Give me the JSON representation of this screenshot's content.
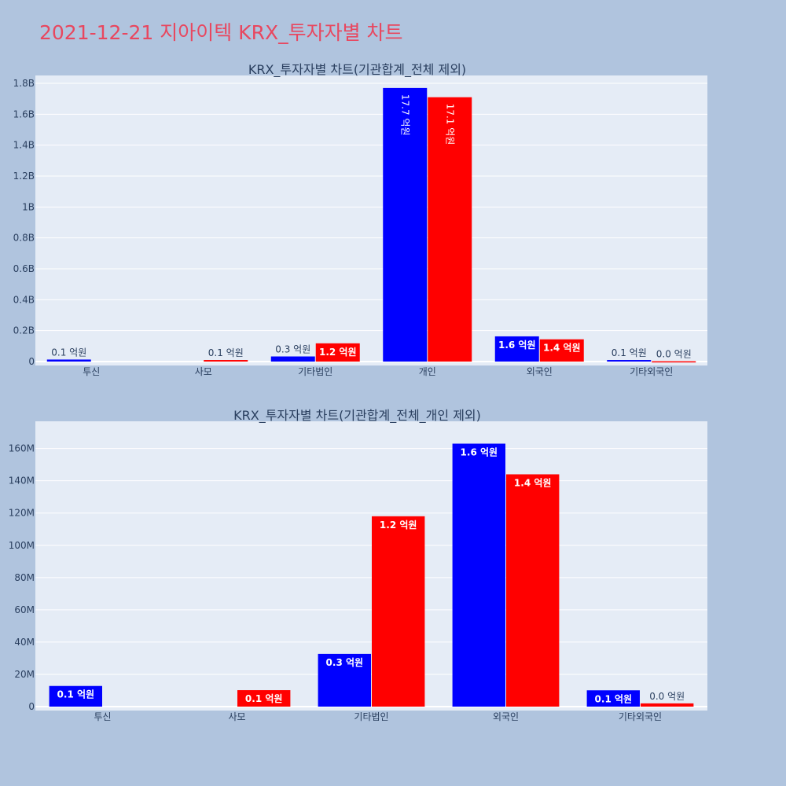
{
  "page": {
    "title": "2021-12-21 지아이텍 KRX_투자자별 차트",
    "background": "#b0c4de",
    "title_color": "#e8475f"
  },
  "chart_data": [
    {
      "type": "bar",
      "title": "KRX_투자자별 차트(기관합계_전체 제외)",
      "categories": [
        "투신",
        "사모",
        "기타법인",
        "개인",
        "외국인",
        "기타외국인"
      ],
      "yticks": [
        "0",
        "0.2B",
        "0.4B",
        "0.6B",
        "0.8B",
        "1B",
        "1.2B",
        "1.4B",
        "1.6B",
        "1.8B"
      ],
      "ylim": [
        0,
        1800000000
      ],
      "grid": true,
      "series": [
        {
          "color": "#0000ff",
          "values": [
            13000000,
            0,
            33000000,
            1770000000,
            163000000,
            10000000
          ],
          "labels": [
            "0.1 억원",
            "",
            "0.3 억원",
            "17.7 억원",
            "1.6 억원",
            "0.1 억원"
          ]
        },
        {
          "color": "#ff0000",
          "values": [
            0,
            10000000,
            118000000,
            1710000000,
            144000000,
            2000000
          ],
          "labels": [
            "",
            "0.1 억원",
            "1.2 억원",
            "17.1 억원",
            "1.4 억원",
            "0.0 억원"
          ]
        }
      ]
    },
    {
      "type": "bar",
      "title": "KRX_투자자별 차트(기관합계_전체_개인 제외)",
      "categories": [
        "투신",
        "사모",
        "기타법인",
        "외국인",
        "기타외국인"
      ],
      "yticks": [
        "0",
        "20M",
        "40M",
        "60M",
        "80M",
        "100M",
        "120M",
        "140M",
        "160M"
      ],
      "ylim": [
        0,
        172000000
      ],
      "grid": true,
      "series": [
        {
          "color": "#0000ff",
          "values": [
            12800000,
            0,
            32700000,
            163000000,
            10100000
          ],
          "labels": [
            "0.1 억원",
            "",
            "0.3 억원",
            "1.6 억원",
            "0.1 억원"
          ]
        },
        {
          "color": "#ff0000",
          "values": [
            0,
            10200000,
            118000000,
            144000000,
            2000000
          ],
          "labels": [
            "",
            "0.1 억원",
            "1.2 억원",
            "1.4 억원",
            "0.0 억원"
          ]
        }
      ]
    }
  ]
}
